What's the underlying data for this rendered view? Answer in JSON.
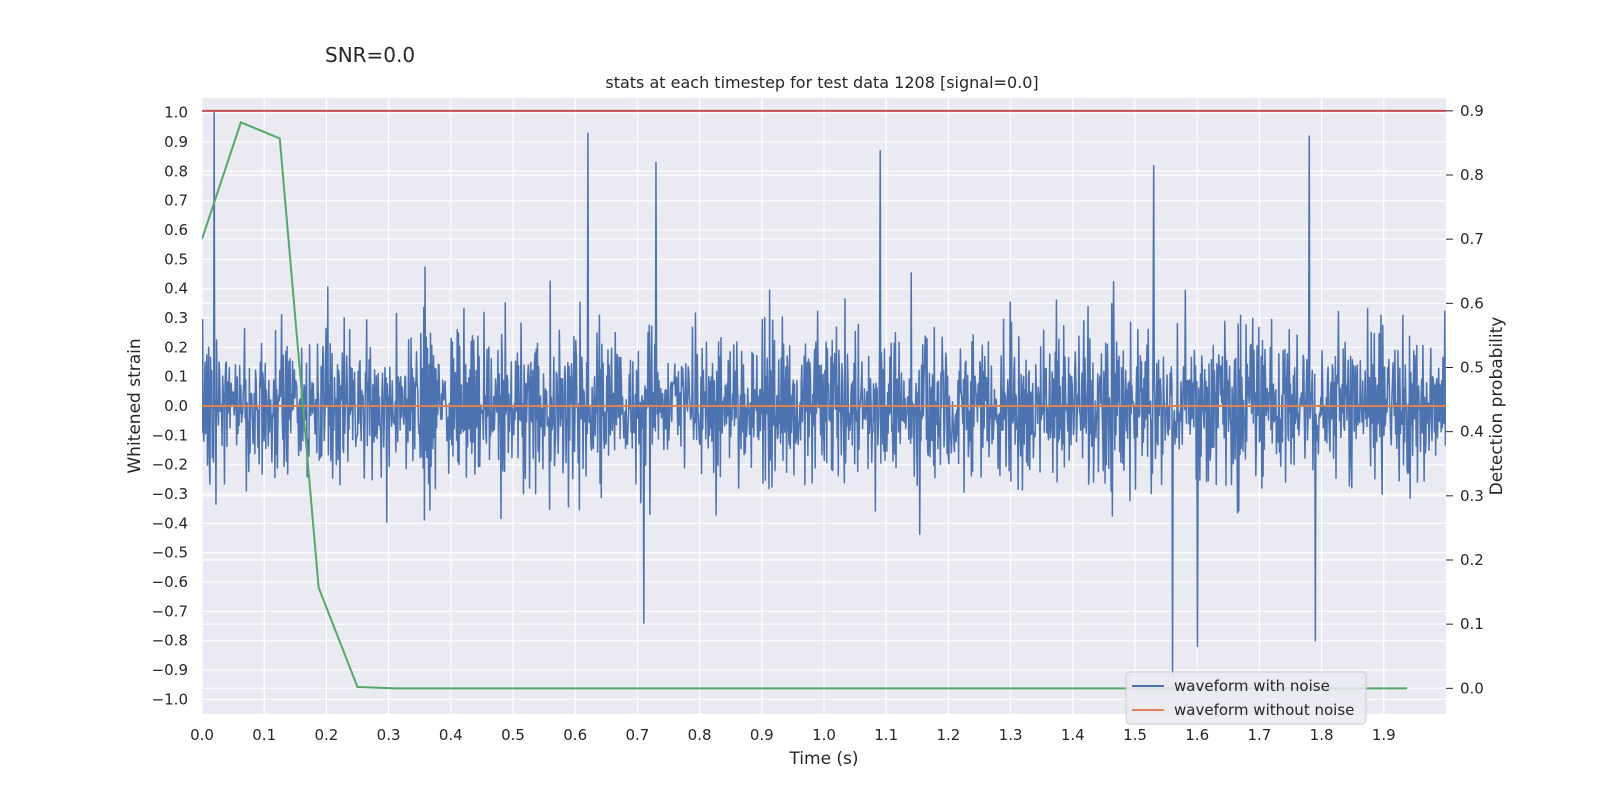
{
  "suptitle": "SNR=0.0",
  "chart_data": {
    "type": "line",
    "title": "stats at each timestep for test data 1208 [signal=0.0]",
    "xlabel": "Time (s)",
    "ylabel": "Whitened strain",
    "y2label": "Detection probability",
    "xlim": [
      0.0,
      2.0
    ],
    "ylim": [
      -1.05,
      1.05
    ],
    "y2lim": [
      -0.04,
      0.92
    ],
    "xticks": [
      0.0,
      0.1,
      0.2,
      0.3,
      0.4,
      0.5,
      0.6,
      0.7,
      0.8,
      0.9,
      1.0,
      1.1,
      1.2,
      1.3,
      1.4,
      1.5,
      1.6,
      1.7,
      1.8,
      1.9
    ],
    "xtick_labels": [
      "0.0",
      "0.1",
      "0.2",
      "0.3",
      "0.4",
      "0.5",
      "0.6",
      "0.7",
      "0.8",
      "0.9",
      "1.0",
      "1.1",
      "1.2",
      "1.3",
      "1.4",
      "1.5",
      "1.6",
      "1.7",
      "1.8",
      "1.9"
    ],
    "yticks": [
      1.0,
      0.9,
      0.8,
      0.7,
      0.6,
      0.5,
      0.4,
      0.3,
      0.2,
      0.1,
      0.0,
      -0.1,
      -0.2,
      -0.3,
      -0.4,
      -0.5,
      -0.6,
      -0.7,
      -0.8,
      -0.9,
      -1.0
    ],
    "ytick_labels": [
      "1.0",
      "0.9",
      "0.8",
      "0.7",
      "0.6",
      "0.5",
      "0.4",
      "0.3",
      "0.2",
      "0.1",
      "0.0",
      "−0.1",
      "−0.2",
      "−0.3",
      "−0.4",
      "−0.5",
      "−0.6",
      "−0.7",
      "−0.8",
      "−0.9",
      "−1.0"
    ],
    "y2ticks": [
      0.9,
      0.8,
      0.7,
      0.6,
      0.5,
      0.4,
      0.3,
      0.2,
      0.1,
      0.0
    ],
    "y2tick_labels": [
      "0.9",
      "0.8",
      "0.7",
      "0.6",
      "0.5",
      "0.4",
      "0.3",
      "0.2",
      "0.1",
      "0.0"
    ],
    "grid": true,
    "legend_position": "lower-right",
    "series": [
      {
        "name": "waveform with noise",
        "color": "#4c72b0",
        "axis": "left",
        "sample_count": 2048,
        "amplitude_range": [
          -0.92,
          1.0
        ],
        "peaks": [
          {
            "x": 0.02,
            "y": 1.0
          },
          {
            "x": 0.62,
            "y": 0.93
          },
          {
            "x": 0.73,
            "y": 0.83
          },
          {
            "x": 1.09,
            "y": 0.87
          },
          {
            "x": 1.53,
            "y": 0.82
          },
          {
            "x": 1.78,
            "y": 0.92
          },
          {
            "x": 1.56,
            "y": -0.92
          },
          {
            "x": 1.6,
            "y": -0.82
          },
          {
            "x": 1.79,
            "y": -0.8
          },
          {
            "x": 0.71,
            "y": -0.74
          }
        ]
      },
      {
        "name": "waveform without noise",
        "color": "#dd8452",
        "axis": "left",
        "x": [
          0.0,
          2.0
        ],
        "y": [
          0.0,
          0.0
        ]
      },
      {
        "name": "",
        "color": "#55a868",
        "axis": "right",
        "x": [
          0.0,
          0.0625,
          0.125,
          0.1875,
          0.25,
          0.3125,
          0.375,
          0.4375,
          0.5,
          0.5625,
          0.625,
          0.6875,
          0.75,
          0.8125,
          0.875,
          0.9375,
          1.0,
          1.0625,
          1.125,
          1.1875,
          1.25,
          1.3125,
          1.375,
          1.4375,
          1.5,
          1.5625,
          1.625,
          1.6875,
          1.75,
          1.8125,
          1.875,
          1.9375
        ],
        "y": [
          0.7,
          0.882,
          0.857,
          0.157,
          0.002,
          0.0,
          0.0,
          0.0,
          0.0,
          0.0,
          0.0,
          0.0,
          0.0,
          0.0,
          0.0,
          0.0,
          0.0,
          0.0,
          0.0,
          0.0,
          0.0,
          0.0,
          0.0,
          0.0,
          0.0,
          0.0,
          0.0,
          0.0,
          0.0,
          0.0,
          0.0,
          0.0
        ]
      },
      {
        "name": "",
        "color": "#c44e52",
        "axis": "right",
        "x": [
          0.0,
          2.0
        ],
        "y": [
          0.9,
          0.9
        ]
      }
    ]
  }
}
